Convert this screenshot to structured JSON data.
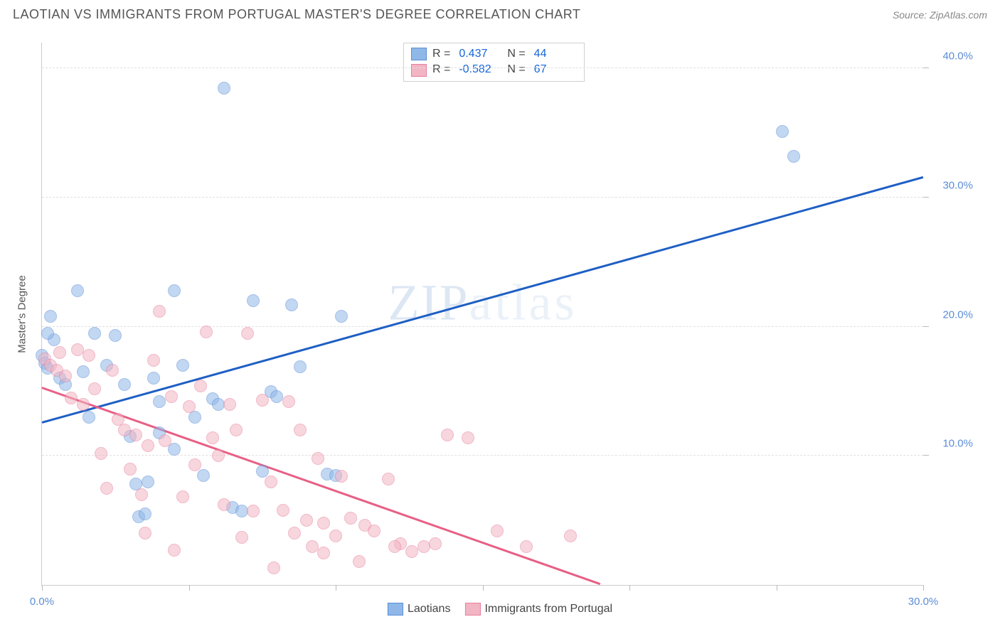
{
  "title": "LAOTIAN VS IMMIGRANTS FROM PORTUGAL MASTER'S DEGREE CORRELATION CHART",
  "source": "Source: ZipAtlas.com",
  "watermark": "ZIPatlas",
  "chart": {
    "type": "scatter",
    "y_axis_title": "Master's Degree",
    "background_color": "#ffffff",
    "grid_color": "#e0e0e0",
    "axis_color": "#cccccc",
    "tick_label_color": "#5b8dd6",
    "tick_fontsize": 15,
    "xlim": [
      0,
      30
    ],
    "ylim": [
      0,
      42
    ],
    "x_ticks": [
      0,
      5,
      10,
      15,
      20,
      25,
      30
    ],
    "x_tick_labels": {
      "0": "0.0%",
      "30": "30.0%"
    },
    "y_ticks": [
      10,
      20,
      30,
      40
    ],
    "y_tick_labels": {
      "10": "10.0%",
      "20": "20.0%",
      "30": "30.0%",
      "40": "40.0%"
    },
    "marker_radius": 9,
    "marker_opacity": 0.55,
    "marker_border_opacity": 0.9,
    "trend_line_width": 2.5,
    "series": [
      {
        "name": "Laotians",
        "color_fill": "#8fb8e8",
        "color_border": "#5b8dd6",
        "trend_color": "#1e5fc4",
        "R": "0.437",
        "N": "44",
        "trend_line": {
          "x1": 0,
          "y1": 12.5,
          "x2": 30,
          "y2": 31.5
        },
        "points": [
          [
            0.0,
            17.8
          ],
          [
            0.1,
            17.2
          ],
          [
            0.2,
            16.8
          ],
          [
            0.3,
            20.8
          ],
          [
            0.4,
            19.0
          ],
          [
            0.6,
            16.0
          ],
          [
            0.8,
            15.5
          ],
          [
            1.2,
            22.8
          ],
          [
            1.4,
            16.5
          ],
          [
            1.6,
            13.0
          ],
          [
            1.8,
            19.5
          ],
          [
            2.2,
            17.0
          ],
          [
            2.5,
            19.3
          ],
          [
            2.8,
            15.5
          ],
          [
            3.0,
            11.5
          ],
          [
            3.2,
            7.8
          ],
          [
            3.3,
            5.3
          ],
          [
            3.5,
            5.5
          ],
          [
            3.6,
            8.0
          ],
          [
            3.8,
            16.0
          ],
          [
            4.0,
            11.8
          ],
          [
            4.0,
            14.2
          ],
          [
            4.5,
            22.8
          ],
          [
            4.5,
            10.5
          ],
          [
            4.8,
            17.0
          ],
          [
            5.2,
            13.0
          ],
          [
            5.5,
            8.5
          ],
          [
            5.8,
            14.4
          ],
          [
            6.0,
            14.0
          ],
          [
            6.5,
            6.0
          ],
          [
            6.8,
            5.7
          ],
          [
            7.2,
            22.0
          ],
          [
            7.5,
            8.8
          ],
          [
            7.8,
            15.0
          ],
          [
            8.0,
            14.6
          ],
          [
            8.5,
            21.7
          ],
          [
            8.8,
            16.9
          ],
          [
            9.7,
            8.6
          ],
          [
            10.0,
            8.5
          ],
          [
            10.2,
            20.8
          ],
          [
            6.2,
            38.5
          ],
          [
            25.2,
            35.1
          ],
          [
            25.6,
            33.2
          ],
          [
            0.2,
            19.5
          ]
        ]
      },
      {
        "name": "Immigrants from Portugal",
        "color_fill": "#f2b5c4",
        "color_border": "#e87f9c",
        "trend_color": "#e85f85",
        "R": "-0.582",
        "N": "67",
        "trend_line": {
          "x1": 0,
          "y1": 15.2,
          "x2": 19,
          "y2": 0
        },
        "points": [
          [
            0.1,
            17.5
          ],
          [
            0.3,
            17.0
          ],
          [
            0.5,
            16.6
          ],
          [
            0.6,
            18.0
          ],
          [
            0.8,
            16.2
          ],
          [
            1.0,
            14.5
          ],
          [
            1.2,
            18.2
          ],
          [
            1.4,
            14.0
          ],
          [
            1.6,
            17.8
          ],
          [
            1.8,
            15.2
          ],
          [
            2.0,
            10.2
          ],
          [
            2.2,
            7.5
          ],
          [
            2.4,
            16.6
          ],
          [
            2.6,
            12.8
          ],
          [
            2.8,
            12.0
          ],
          [
            3.0,
            9.0
          ],
          [
            3.2,
            11.6
          ],
          [
            3.4,
            7.0
          ],
          [
            3.5,
            4.0
          ],
          [
            3.6,
            10.8
          ],
          [
            3.8,
            17.4
          ],
          [
            4.0,
            21.2
          ],
          [
            4.2,
            11.2
          ],
          [
            4.4,
            14.6
          ],
          [
            4.5,
            2.7
          ],
          [
            4.8,
            6.8
          ],
          [
            5.0,
            13.8
          ],
          [
            5.2,
            9.3
          ],
          [
            5.4,
            15.4
          ],
          [
            5.6,
            19.6
          ],
          [
            5.8,
            11.4
          ],
          [
            6.0,
            10.0
          ],
          [
            6.2,
            6.2
          ],
          [
            6.4,
            14.0
          ],
          [
            6.6,
            12.0
          ],
          [
            6.8,
            3.7
          ],
          [
            7.0,
            19.5
          ],
          [
            7.2,
            5.7
          ],
          [
            7.5,
            14.3
          ],
          [
            7.8,
            8.0
          ],
          [
            7.9,
            1.3
          ],
          [
            8.2,
            5.8
          ],
          [
            8.4,
            14.2
          ],
          [
            8.6,
            4.0
          ],
          [
            8.8,
            12.0
          ],
          [
            9.0,
            5.0
          ],
          [
            9.2,
            3.0
          ],
          [
            9.4,
            9.8
          ],
          [
            9.6,
            4.8
          ],
          [
            10.0,
            3.8
          ],
          [
            10.2,
            8.4
          ],
          [
            10.5,
            5.2
          ],
          [
            10.8,
            1.8
          ],
          [
            11.0,
            4.6
          ],
          [
            11.3,
            4.2
          ],
          [
            11.8,
            8.2
          ],
          [
            12.2,
            3.2
          ],
          [
            12.6,
            2.6
          ],
          [
            13.0,
            3.0
          ],
          [
            13.4,
            3.2
          ],
          [
            13.8,
            11.6
          ],
          [
            14.5,
            11.4
          ],
          [
            15.5,
            4.2
          ],
          [
            12.0,
            3.0
          ],
          [
            18.0,
            3.8
          ],
          [
            16.5,
            3.0
          ],
          [
            9.6,
            2.5
          ]
        ]
      }
    ],
    "legend_bottom": [
      {
        "label": "Laotians",
        "fill": "#8fb8e8",
        "border": "#5b8dd6"
      },
      {
        "label": "Immigrants from Portugal",
        "fill": "#f2b5c4",
        "border": "#e87f9c"
      }
    ]
  }
}
